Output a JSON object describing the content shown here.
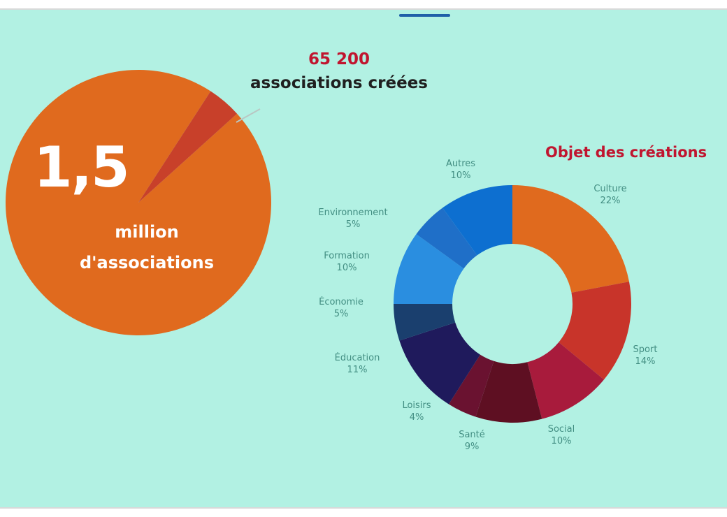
{
  "headline": {
    "created_count": "65 200",
    "created_label": "associations créées"
  },
  "total": {
    "number": "1,5",
    "label_line1": "million",
    "label_line2": "d'associations"
  },
  "colors": {
    "big_pie": "#e06a1e",
    "big_pie_slice": "#c8402a",
    "background": "#b2f1e3",
    "title_red": "#c0152f"
  },
  "chart_data": [
    {
      "type": "pie",
      "title": "",
      "slices": [
        {
          "label": "1,5 million d'associations",
          "value": 1500000,
          "color": "#e06a1e"
        },
        {
          "label": "65 200 associations créées",
          "value": 65200,
          "color": "#c8402a"
        }
      ]
    },
    {
      "type": "pie",
      "title": "Objet des créations",
      "donut": true,
      "slices": [
        {
          "label": "Culture",
          "value": 22,
          "color": "#e06a1e",
          "name": "Culture",
          "pct": "22%"
        },
        {
          "label": "Sport",
          "value": 14,
          "color": "#c8342a",
          "name": "Sport",
          "pct": "14%"
        },
        {
          "label": "Social",
          "value": 10,
          "color": "#a81b3c",
          "name": "Social",
          "pct": "10%"
        },
        {
          "label": "Santé",
          "value": 9,
          "color": "#5e0f22",
          "name": "Santé",
          "pct": "9%"
        },
        {
          "label": "Loisirs",
          "value": 4,
          "color": "#6a1230",
          "name": "Loisirs",
          "pct": "4%"
        },
        {
          "label": "Éducation",
          "value": 11,
          "color": "#1f1a5c",
          "name": "Éducation",
          "pct": "11%"
        },
        {
          "label": "Économie",
          "value": 5,
          "color": "#1a3f6e",
          "name": "Économie",
          "pct": "5%"
        },
        {
          "label": "Formation",
          "value": 10,
          "color": "#2a8ee0",
          "name": "Formation",
          "pct": "10%"
        },
        {
          "label": "Environnement",
          "value": 5,
          "color": "#1f6fc8",
          "name": "Environnement",
          "pct": "5%"
        },
        {
          "label": "Autres",
          "value": 10,
          "color": "#0d6fd0",
          "name": "Autres",
          "pct": "10%"
        }
      ]
    }
  ]
}
